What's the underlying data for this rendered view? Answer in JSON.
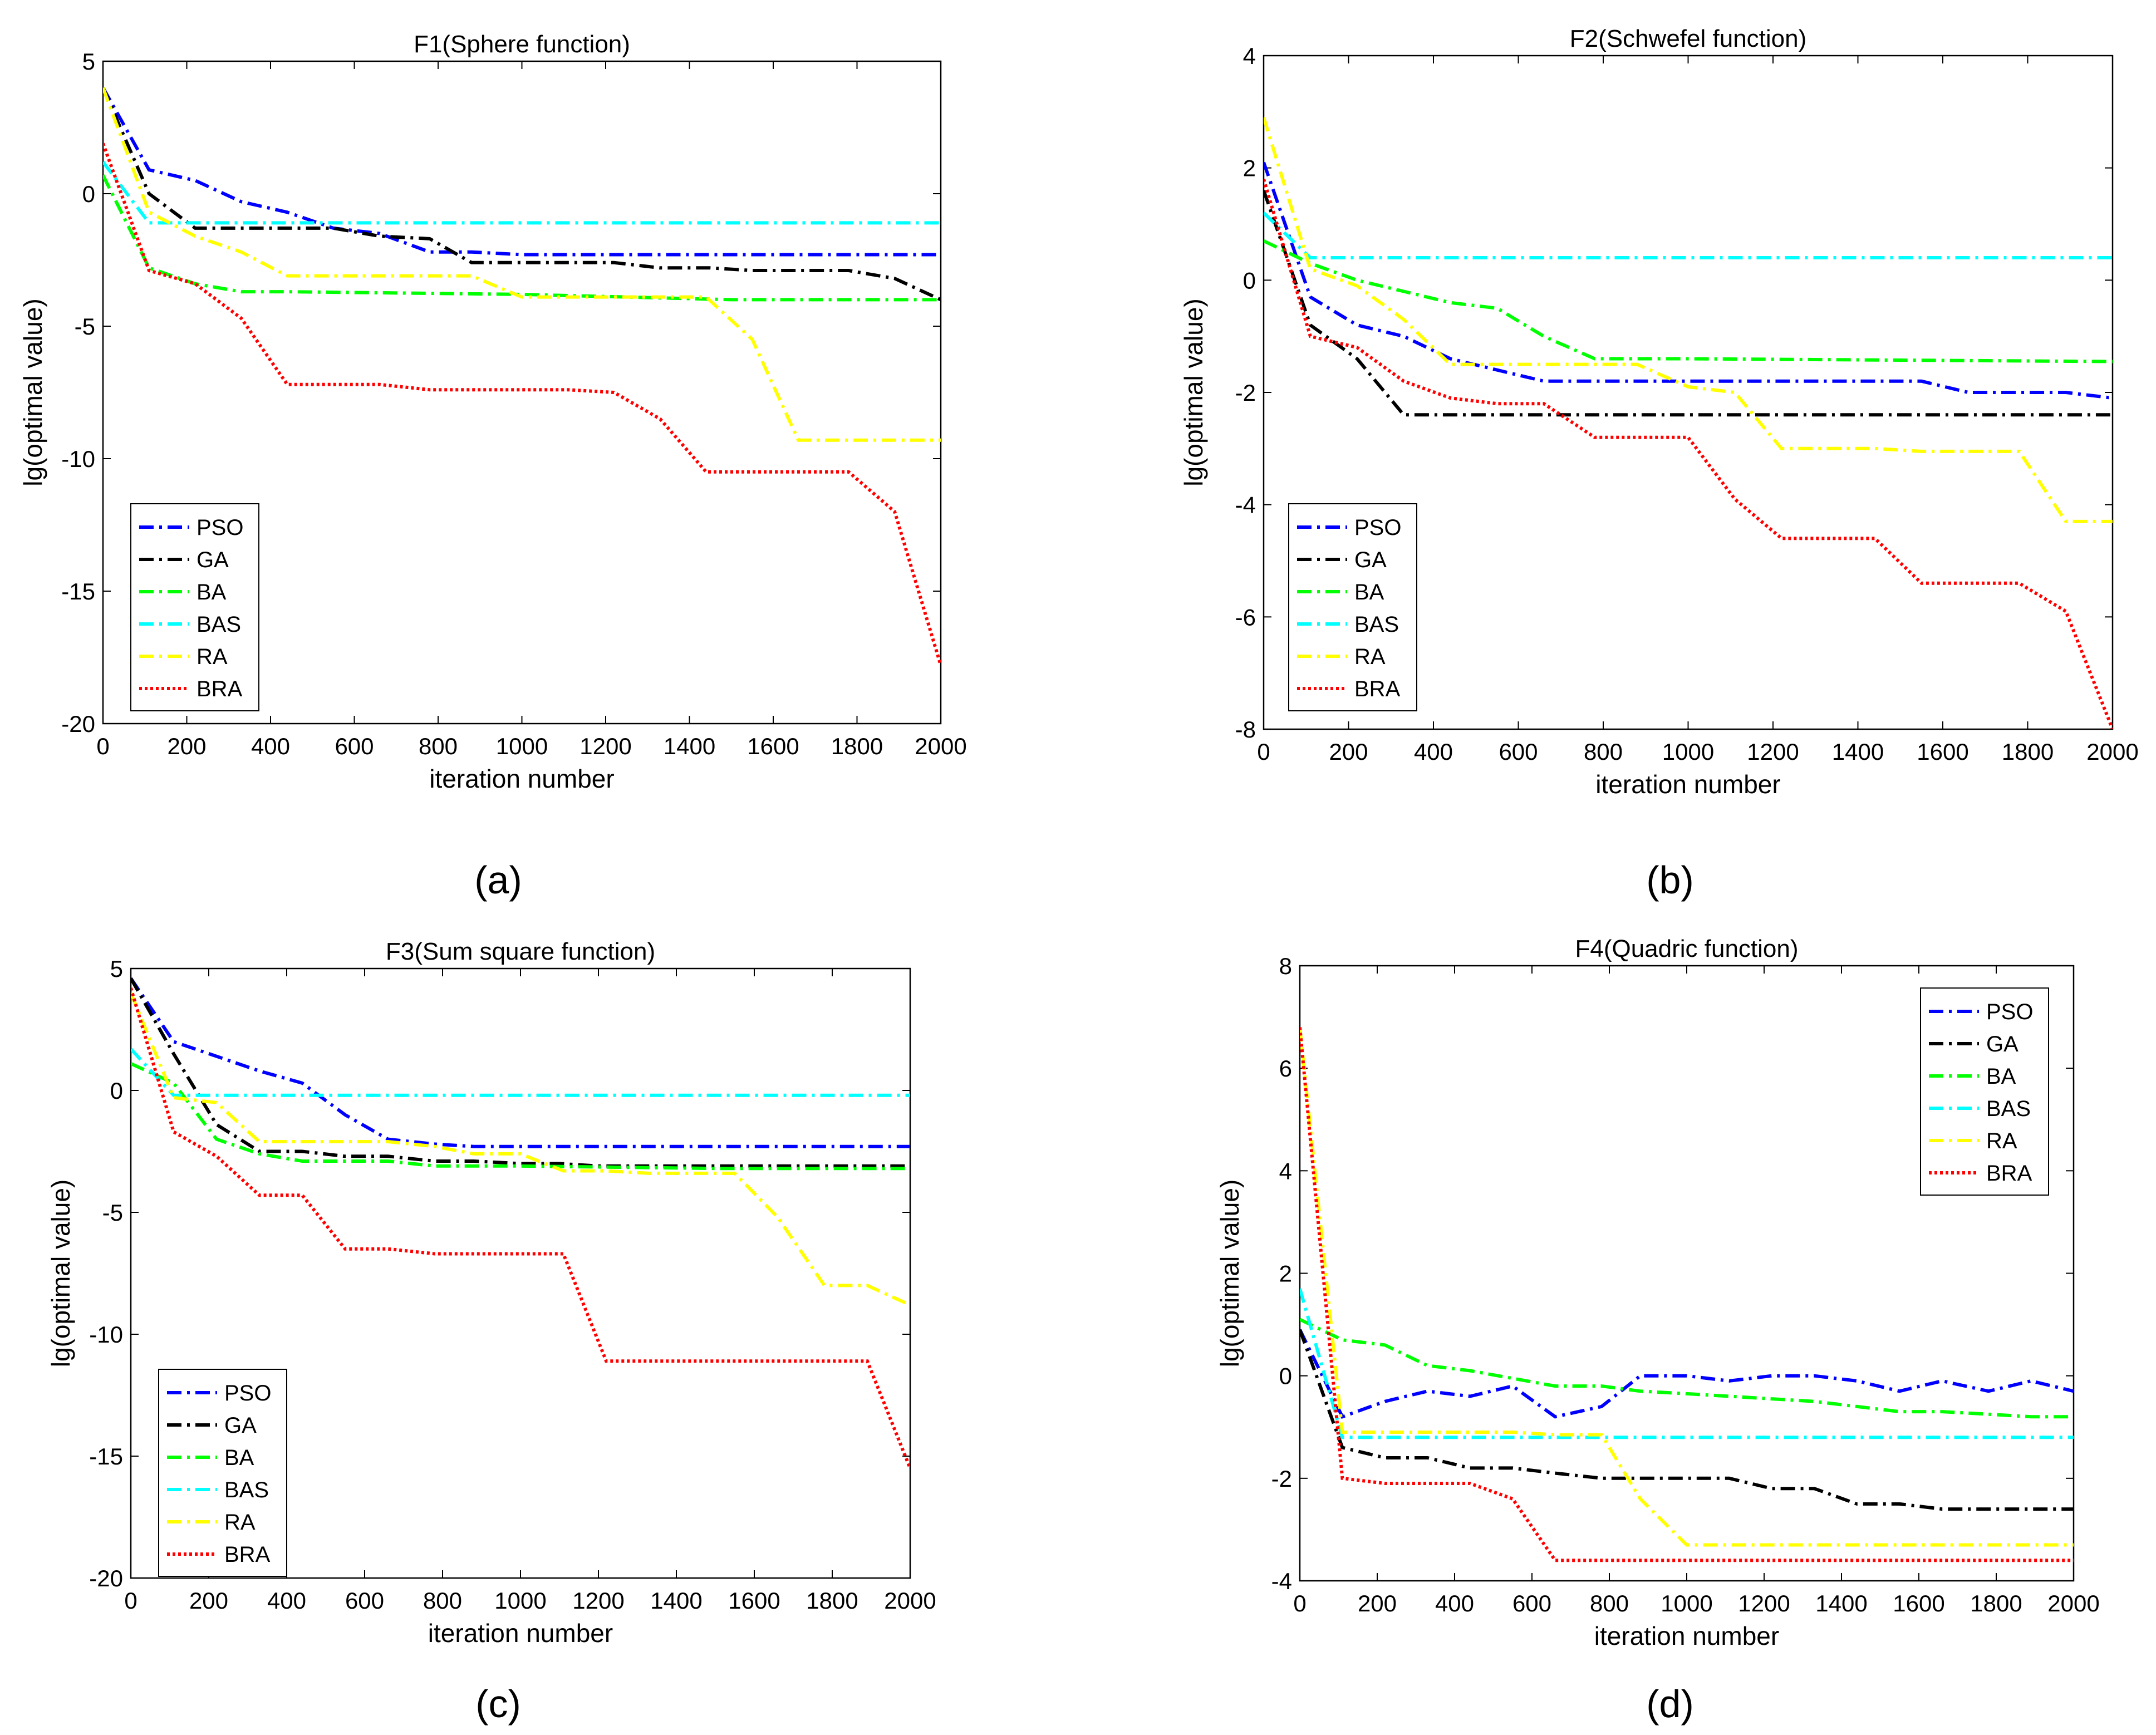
{
  "captions": [
    "(a)",
    "(b)",
    "(c)",
    "(d)"
  ],
  "series_styles": [
    {
      "name": "PSO",
      "color": "#0000ff",
      "dash": "dashdot"
    },
    {
      "name": "GA",
      "color": "#000000",
      "dash": "dashdot"
    },
    {
      "name": "BA",
      "color": "#00ff00",
      "dash": "dashdot"
    },
    {
      "name": "BAS",
      "color": "#00ffff",
      "dash": "dashdot"
    },
    {
      "name": "RA",
      "color": "#ffff00",
      "dash": "dashdot"
    },
    {
      "name": "BRA",
      "color": "#ff0000",
      "dash": "dotted"
    }
  ],
  "chart_data": [
    {
      "type": "line",
      "title": "F1(Sphere function)",
      "xlabel": "iteration number",
      "ylabel": "lg(optimal value)",
      "xlim": [
        0,
        2000
      ],
      "ylim": [
        -20,
        5
      ],
      "xticks": [
        0,
        200,
        400,
        600,
        800,
        1000,
        1200,
        1400,
        1600,
        1800,
        2000
      ],
      "yticks": [
        -20,
        -15,
        -10,
        -5,
        0,
        5
      ],
      "legend": "bottom-left",
      "series": [
        {
          "name": "PSO",
          "x": [
            0,
            110,
            220,
            330,
            440,
            550,
            660,
            780,
            880,
            1000,
            1200,
            1400,
            1600,
            1800,
            2000
          ],
          "y": [
            4,
            0.9,
            0.5,
            -0.3,
            -0.7,
            -1.3,
            -1.5,
            -2.2,
            -2.2,
            -2.3,
            -2.3,
            -2.3,
            -2.3,
            -2.3,
            -2.3
          ]
        },
        {
          "name": "GA",
          "x": [
            0,
            110,
            220,
            330,
            440,
            550,
            660,
            780,
            880,
            1000,
            1220,
            1330,
            1450,
            1550,
            1660,
            1780,
            1890,
            2000
          ],
          "y": [
            4,
            0,
            -1.3,
            -1.3,
            -1.3,
            -1.3,
            -1.6,
            -1.7,
            -2.6,
            -2.6,
            -2.6,
            -2.8,
            -2.8,
            -2.9,
            -2.9,
            -2.9,
            -3.2,
            -4
          ]
        },
        {
          "name": "BA",
          "x": [
            0,
            110,
            220,
            330,
            440,
            1000,
            1500,
            2000
          ],
          "y": [
            0.7,
            -2.8,
            -3.4,
            -3.7,
            -3.7,
            -3.8,
            -4.0,
            -4.0
          ]
        },
        {
          "name": "BAS",
          "x": [
            0,
            110,
            220,
            2000
          ],
          "y": [
            1.2,
            -1.1,
            -1.1,
            -1.1
          ]
        },
        {
          "name": "RA",
          "x": [
            0,
            110,
            220,
            330,
            440,
            550,
            660,
            880,
            1000,
            1440,
            1550,
            1660,
            1780,
            2000
          ],
          "y": [
            4,
            -0.7,
            -1.6,
            -2.2,
            -3.1,
            -3.1,
            -3.1,
            -3.1,
            -3.9,
            -3.9,
            -5.5,
            -9.3,
            -9.3,
            -9.3
          ]
        },
        {
          "name": "BRA",
          "x": [
            0,
            110,
            220,
            330,
            440,
            550,
            660,
            780,
            880,
            1000,
            1110,
            1220,
            1330,
            1440,
            1550,
            1660,
            1780,
            1890,
            2000
          ],
          "y": [
            1.9,
            -2.9,
            -3.4,
            -4.7,
            -7.2,
            -7.2,
            -7.2,
            -7.4,
            -7.4,
            -7.4,
            -7.4,
            -7.5,
            -8.5,
            -10.5,
            -10.5,
            -10.5,
            -10.5,
            -12,
            -17.8
          ]
        }
      ]
    },
    {
      "type": "line",
      "title": "F2(Schwefel function)",
      "xlabel": "iteration number",
      "ylabel": "lg(optimal value)",
      "xlim": [
        0,
        2000
      ],
      "ylim": [
        -8,
        4
      ],
      "xticks": [
        0,
        200,
        400,
        600,
        800,
        1000,
        1200,
        1400,
        1600,
        1800,
        2000
      ],
      "yticks": [
        -8,
        -6,
        -4,
        -2,
        0,
        2,
        4
      ],
      "legend": "bottom-left",
      "series": [
        {
          "name": "PSO",
          "x": [
            0,
            110,
            220,
            330,
            440,
            550,
            660,
            780,
            880,
            1000,
            1100,
            1220,
            1330,
            1440,
            1550,
            1660,
            1780,
            1890,
            2000
          ],
          "y": [
            2.1,
            -0.3,
            -0.8,
            -1.0,
            -1.4,
            -1.6,
            -1.8,
            -1.8,
            -1.8,
            -1.8,
            -1.8,
            -1.8,
            -1.8,
            -1.8,
            -1.8,
            -2.0,
            -2.0,
            -2.0,
            -2.1
          ]
        },
        {
          "name": "GA",
          "x": [
            0,
            110,
            220,
            330,
            440,
            2000
          ],
          "y": [
            1.6,
            -0.8,
            -1.4,
            -2.4,
            -2.4,
            -2.4
          ]
        },
        {
          "name": "BA",
          "x": [
            0,
            110,
            220,
            330,
            440,
            550,
            660,
            780,
            1000,
            2000
          ],
          "y": [
            0.7,
            0.3,
            0.0,
            -0.2,
            -0.4,
            -0.5,
            -1.0,
            -1.4,
            -1.4,
            -1.45
          ]
        },
        {
          "name": "BAS",
          "x": [
            0,
            110,
            220,
            2000
          ],
          "y": [
            1.2,
            0.4,
            0.4,
            0.4
          ]
        },
        {
          "name": "RA",
          "x": [
            0,
            110,
            220,
            330,
            440,
            550,
            660,
            780,
            880,
            1000,
            1110,
            1220,
            1330,
            1440,
            1550,
            1660,
            1780,
            1890,
            2000
          ],
          "y": [
            2.9,
            0.2,
            -0.1,
            -0.7,
            -1.5,
            -1.5,
            -1.5,
            -1.5,
            -1.5,
            -1.9,
            -2.0,
            -3.0,
            -3.0,
            -3.0,
            -3.05,
            -3.05,
            -3.05,
            -4.3,
            -4.3
          ]
        },
        {
          "name": "BRA",
          "x": [
            0,
            110,
            220,
            330,
            440,
            550,
            660,
            780,
            880,
            1000,
            1110,
            1220,
            1330,
            1440,
            1550,
            1660,
            1780,
            1890,
            2000
          ],
          "y": [
            1.8,
            -1.0,
            -1.2,
            -1.8,
            -2.1,
            -2.2,
            -2.2,
            -2.8,
            -2.8,
            -2.8,
            -3.9,
            -4.6,
            -4.6,
            -4.6,
            -5.4,
            -5.4,
            -5.4,
            -5.9,
            -8.0
          ]
        }
      ]
    },
    {
      "type": "line",
      "title": "F3(Sum square function)",
      "xlabel": "iteration number",
      "ylabel": "lg(optimal value)",
      "xlim": [
        0,
        2000
      ],
      "ylim": [
        -20,
        5
      ],
      "xticks": [
        0,
        200,
        400,
        600,
        800,
        1000,
        1200,
        1400,
        1600,
        1800,
        2000
      ],
      "yticks": [
        -20,
        -15,
        -10,
        -5,
        0,
        5
      ],
      "legend": "bottom-left",
      "series": [
        {
          "name": "PSO",
          "x": [
            0,
            110,
            220,
            330,
            440,
            550,
            660,
            780,
            880,
            1000,
            2000
          ],
          "y": [
            4.6,
            2.0,
            1.4,
            0.8,
            0.3,
            -1.0,
            -2.0,
            -2.2,
            -2.3,
            -2.3,
            -2.3
          ]
        },
        {
          "name": "GA",
          "x": [
            0,
            110,
            220,
            330,
            440,
            550,
            660,
            780,
            880,
            1000,
            1100,
            1200,
            2000
          ],
          "y": [
            4.6,
            1.5,
            -1.4,
            -2.5,
            -2.5,
            -2.7,
            -2.7,
            -2.9,
            -2.9,
            -3.0,
            -3.0,
            -3.1,
            -3.1
          ]
        },
        {
          "name": "BA",
          "x": [
            0,
            110,
            220,
            330,
            440,
            550,
            660,
            780,
            880,
            1000,
            1500,
            2000
          ],
          "y": [
            1.1,
            0.3,
            -2.0,
            -2.6,
            -2.9,
            -2.9,
            -2.9,
            -3.1,
            -3.1,
            -3.1,
            -3.2,
            -3.2
          ]
        },
        {
          "name": "BAS",
          "x": [
            0,
            110,
            220,
            2000
          ],
          "y": [
            1.7,
            -0.2,
            -0.2,
            -0.2
          ]
        },
        {
          "name": "RA",
          "x": [
            0,
            110,
            220,
            330,
            440,
            550,
            660,
            780,
            880,
            1000,
            1110,
            1220,
            1330,
            1440,
            1550,
            1660,
            1780,
            1890,
            2000
          ],
          "y": [
            4.0,
            -0.3,
            -0.5,
            -2.1,
            -2.1,
            -2.1,
            -2.1,
            -2.3,
            -2.6,
            -2.6,
            -3.3,
            -3.3,
            -3.4,
            -3.4,
            -3.4,
            -5.2,
            -8.0,
            -8.0,
            -8.8
          ]
        },
        {
          "name": "BRA",
          "x": [
            0,
            110,
            220,
            330,
            440,
            550,
            660,
            780,
            880,
            1000,
            1110,
            1220,
            1330,
            1440,
            1550,
            1660,
            1780,
            1890,
            2000
          ],
          "y": [
            4.2,
            -1.7,
            -2.7,
            -4.3,
            -4.3,
            -6.5,
            -6.5,
            -6.7,
            -6.7,
            -6.7,
            -6.7,
            -11.1,
            -11.1,
            -11.1,
            -11.1,
            -11.1,
            -11.1,
            -11.1,
            -15.5
          ]
        }
      ]
    },
    {
      "type": "line",
      "title": "F4(Quadric function)",
      "xlabel": "iteration number",
      "ylabel": "lg(optimal value)",
      "xlim": [
        0,
        2000
      ],
      "ylim": [
        -4,
        8
      ],
      "xticks": [
        0,
        200,
        400,
        600,
        800,
        1000,
        1200,
        1400,
        1600,
        1800,
        2000
      ],
      "yticks": [
        -4,
        -2,
        0,
        2,
        4,
        6,
        8
      ],
      "legend": "top-right",
      "series": [
        {
          "name": "PSO",
          "x": [
            0,
            110,
            220,
            330,
            440,
            550,
            660,
            780,
            880,
            1000,
            1110,
            1220,
            1330,
            1440,
            1550,
            1660,
            1780,
            1890,
            2000
          ],
          "y": [
            0.9,
            -0.8,
            -0.5,
            -0.3,
            -0.4,
            -0.2,
            -0.8,
            -0.6,
            0.0,
            0.0,
            -0.1,
            0.0,
            0.0,
            -0.1,
            -0.3,
            -0.1,
            -0.3,
            -0.1,
            -0.3
          ]
        },
        {
          "name": "GA",
          "x": [
            0,
            110,
            220,
            330,
            440,
            550,
            660,
            780,
            880,
            1000,
            1110,
            1220,
            1330,
            1440,
            1550,
            1660,
            1780,
            1890,
            2000
          ],
          "y": [
            0.9,
            -1.4,
            -1.6,
            -1.6,
            -1.8,
            -1.8,
            -1.9,
            -2.0,
            -2.0,
            -2.0,
            -2.0,
            -2.2,
            -2.2,
            -2.5,
            -2.5,
            -2.6,
            -2.6,
            -2.6,
            -2.6
          ]
        },
        {
          "name": "BA",
          "x": [
            0,
            110,
            220,
            330,
            440,
            550,
            660,
            780,
            880,
            1000,
            1110,
            1220,
            1330,
            1440,
            1550,
            1660,
            1780,
            1890,
            2000
          ],
          "y": [
            1.1,
            0.7,
            0.6,
            0.2,
            0.1,
            -0.05,
            -0.2,
            -0.2,
            -0.3,
            -0.35,
            -0.4,
            -0.45,
            -0.5,
            -0.6,
            -0.7,
            -0.7,
            -0.75,
            -0.8,
            -0.8
          ]
        },
        {
          "name": "BAS",
          "x": [
            0,
            110,
            220,
            2000
          ],
          "y": [
            1.7,
            -1.2,
            -1.2,
            -1.2
          ]
        },
        {
          "name": "RA",
          "x": [
            0,
            110,
            220,
            330,
            440,
            550,
            660,
            780,
            880,
            1000,
            1500,
            2000
          ],
          "y": [
            6.8,
            -1.1,
            -1.1,
            -1.1,
            -1.1,
            -1.1,
            -1.15,
            -1.15,
            -2.4,
            -3.3,
            -3.3,
            -3.3
          ]
        },
        {
          "name": "BRA",
          "x": [
            0,
            110,
            220,
            330,
            440,
            550,
            660,
            780,
            2000
          ],
          "y": [
            6.8,
            -2.0,
            -2.1,
            -2.1,
            -2.1,
            -2.4,
            -3.6,
            -3.6,
            -3.6
          ]
        }
      ]
    }
  ]
}
